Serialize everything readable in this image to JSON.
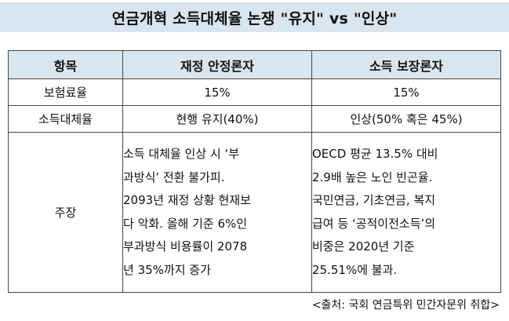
{
  "title": "연금개혁 소득대체율 논쟁 \"유지\" vs \"인상\"",
  "table": {
    "headers": [
      "항목",
      "재정 안정론자",
      "소득 보장론자"
    ],
    "rows": [
      {
        "item": "보험료율",
        "fiscal": "15%",
        "income": "15%"
      },
      {
        "item": "소득대체율",
        "fiscal": "현행 유지(40%)",
        "income": "인상(50% 혹은 45%)"
      }
    ],
    "claim": {
      "item": "주장",
      "fiscal_lines": [
        "소득 대체율 인상 시 ‘부",
        "과방식’ 전환 불가피.",
        "2093년 재정 상황 현재보",
        "다 악화. 올해 기준 6%인",
        "부과방식 비용률이 2078",
        "년 35%까지 증가"
      ],
      "income_lines": [
        "OECD 평균 13.5% 대비",
        "2.9배 높은 노인 빈곤율.",
        "국민연금, 기초연금, 복지",
        "급여 등 ‘공적이전소득’의",
        "비중은 2020년 기준",
        "25.51%에 불과."
      ]
    }
  },
  "source": "<출처: 국회 연금특위 민간자문위 취합>",
  "colors": {
    "header_fill": "#d9e6f0",
    "border": "#444444"
  }
}
